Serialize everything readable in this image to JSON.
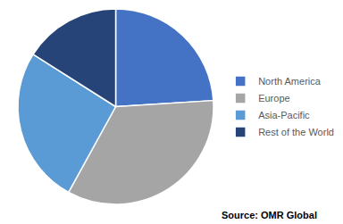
{
  "chart_data": {
    "type": "pie",
    "categories": [
      "North America",
      "Europe",
      "Asia-Pacific",
      "Rest of the World"
    ],
    "values": [
      24,
      34,
      26,
      16
    ],
    "colors": [
      "#4472c4",
      "#a5a5a5",
      "#5b9bd5",
      "#264478"
    ],
    "legend": "right",
    "annotations": [
      "Source: OMR Global"
    ]
  }
}
